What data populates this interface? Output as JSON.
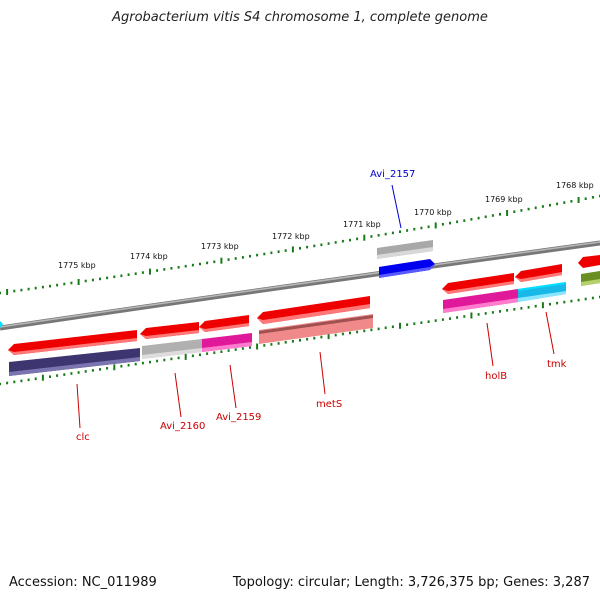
{
  "title": "Agrobacterium vitis S4 chromosome 1, complete genome",
  "footer": {
    "accession": "Accession: NC_011989",
    "summary": "Topology: circular; Length: 3,726,375 bp; Genes: 3,287"
  },
  "ruler": {
    "color": "#1a7a1a",
    "labels": [
      "1775 kbp",
      "1774 kbp",
      "1773 kbp",
      "1772 kbp",
      "1771 kbp",
      "1770 kbp",
      "1769 kbp",
      "1768 kbp"
    ]
  },
  "genes": [
    {
      "name": "clc",
      "label_color": "#cc0000",
      "strand": "minus",
      "cds_color": "#3d3570"
    },
    {
      "name": "Avi_2160",
      "label_color": "#cc0000",
      "strand": "minus",
      "cds_color": "#b0b0b0"
    },
    {
      "name": "Avi_2159",
      "label_color": "#cc0000",
      "strand": "minus",
      "cds_color": "#e0189a"
    },
    {
      "name": "metS",
      "label_color": "#cc0000",
      "strand": "minus",
      "cds_color": "#f08a8a"
    },
    {
      "name": "Avi_2157",
      "label_color": "#0000cc",
      "strand": "plus",
      "cds_color": "#0000ee"
    },
    {
      "name": "holB",
      "label_color": "#cc0000",
      "strand": "minus",
      "cds_color": "#e0189a"
    },
    {
      "name": "tmk",
      "label_color": "#cc0000",
      "strand": "minus",
      "cds_color": "#18b8e8"
    }
  ],
  "colors": {
    "backbone": "#8a8a8a",
    "gene_arrow": "#ee0000",
    "rna_gray": "#a8a8a8",
    "olive": "#6b8e23",
    "cyan_edge": "#00e0ff"
  }
}
